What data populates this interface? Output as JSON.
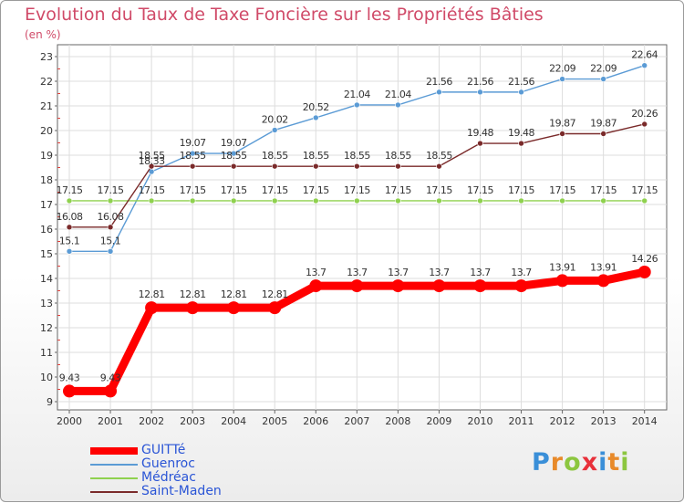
{
  "chart_data": {
    "type": "line",
    "title": "Evolution du Taux de Taxe Foncière sur les Propriétés Bâties",
    "ylabel": "(en %)",
    "xlabel": "",
    "ylim": [
      9,
      23
    ],
    "yticks": [
      "9",
      "10",
      "11",
      "12",
      "13",
      "14",
      "15",
      "16",
      "17",
      "18",
      "19",
      "20",
      "21",
      "22",
      "23"
    ],
    "categories": [
      "2000",
      "2001",
      "2002",
      "2003",
      "2004",
      "2005",
      "2006",
      "2007",
      "2008",
      "2009",
      "2010",
      "2011",
      "2012",
      "2013",
      "2014"
    ],
    "grid": true,
    "legend_position": "bottom-left",
    "series": [
      {
        "name": "GUITTé",
        "color": "#ff0000",
        "values": [
          9.43,
          9.43,
          12.81,
          12.81,
          12.81,
          12.81,
          13.7,
          13.7,
          13.7,
          13.7,
          13.7,
          13.7,
          13.91,
          13.91,
          14.26
        ],
        "labels": [
          "9.43",
          "9.43",
          "12.81",
          "12.81",
          "12.81",
          "12.81",
          "13.7",
          "13.7",
          "13.7",
          "13.7",
          "13.7",
          "13.7",
          "13.91",
          "13.91",
          "14.26"
        ]
      },
      {
        "name": "Guenroc",
        "color": "#5b9bd5",
        "values": [
          15.1,
          15.1,
          18.33,
          19.07,
          19.07,
          20.02,
          20.52,
          21.04,
          21.04,
          21.56,
          21.56,
          21.56,
          22.09,
          22.09,
          22.64
        ],
        "labels": [
          "15.1",
          "15.1",
          "18.33",
          "19.07",
          "19.07",
          "20.02",
          "20.52",
          "21.04",
          "21.04",
          "21.56",
          "21.56",
          "21.56",
          "22.09",
          "22.09",
          "22.64"
        ]
      },
      {
        "name": "Médréac",
        "color": "#8fd14f",
        "values": [
          17.15,
          17.15,
          17.15,
          17.15,
          17.15,
          17.15,
          17.15,
          17.15,
          17.15,
          17.15,
          17.15,
          17.15,
          17.15,
          17.15,
          17.15
        ],
        "labels": [
          "17.15",
          "17.15",
          "17.15",
          "17.15",
          "17.15",
          "17.15",
          "17.15",
          "17.15",
          "17.15",
          "17.15",
          "17.15",
          "17.15",
          "17.15",
          "17.15",
          "17.15"
        ]
      },
      {
        "name": "Saint-Maden",
        "color": "#7a2a2a",
        "values": [
          16.08,
          16.08,
          18.55,
          18.55,
          18.55,
          18.55,
          18.55,
          18.55,
          18.55,
          18.55,
          19.48,
          19.48,
          19.87,
          19.87,
          20.26
        ],
        "labels": [
          "16.08",
          "16.08",
          "18.55",
          "18.55",
          "18.55",
          "18.55",
          "18.55",
          "18.55",
          "18.55",
          "18.55",
          "19.48",
          "19.48",
          "19.87",
          "19.87",
          "20.26"
        ]
      }
    ]
  },
  "brand": {
    "letters": [
      {
        "ch": "P",
        "color": "#3a8fd8"
      },
      {
        "ch": "r",
        "color": "#e88a2a"
      },
      {
        "ch": "o",
        "color": "#8cc63f"
      },
      {
        "ch": "x",
        "color": "#e8303a"
      },
      {
        "ch": "i",
        "color": "#3a8fd8"
      },
      {
        "ch": "t",
        "color": "#e88a2a"
      },
      {
        "ch": "i",
        "color": "#8cc63f"
      }
    ]
  }
}
